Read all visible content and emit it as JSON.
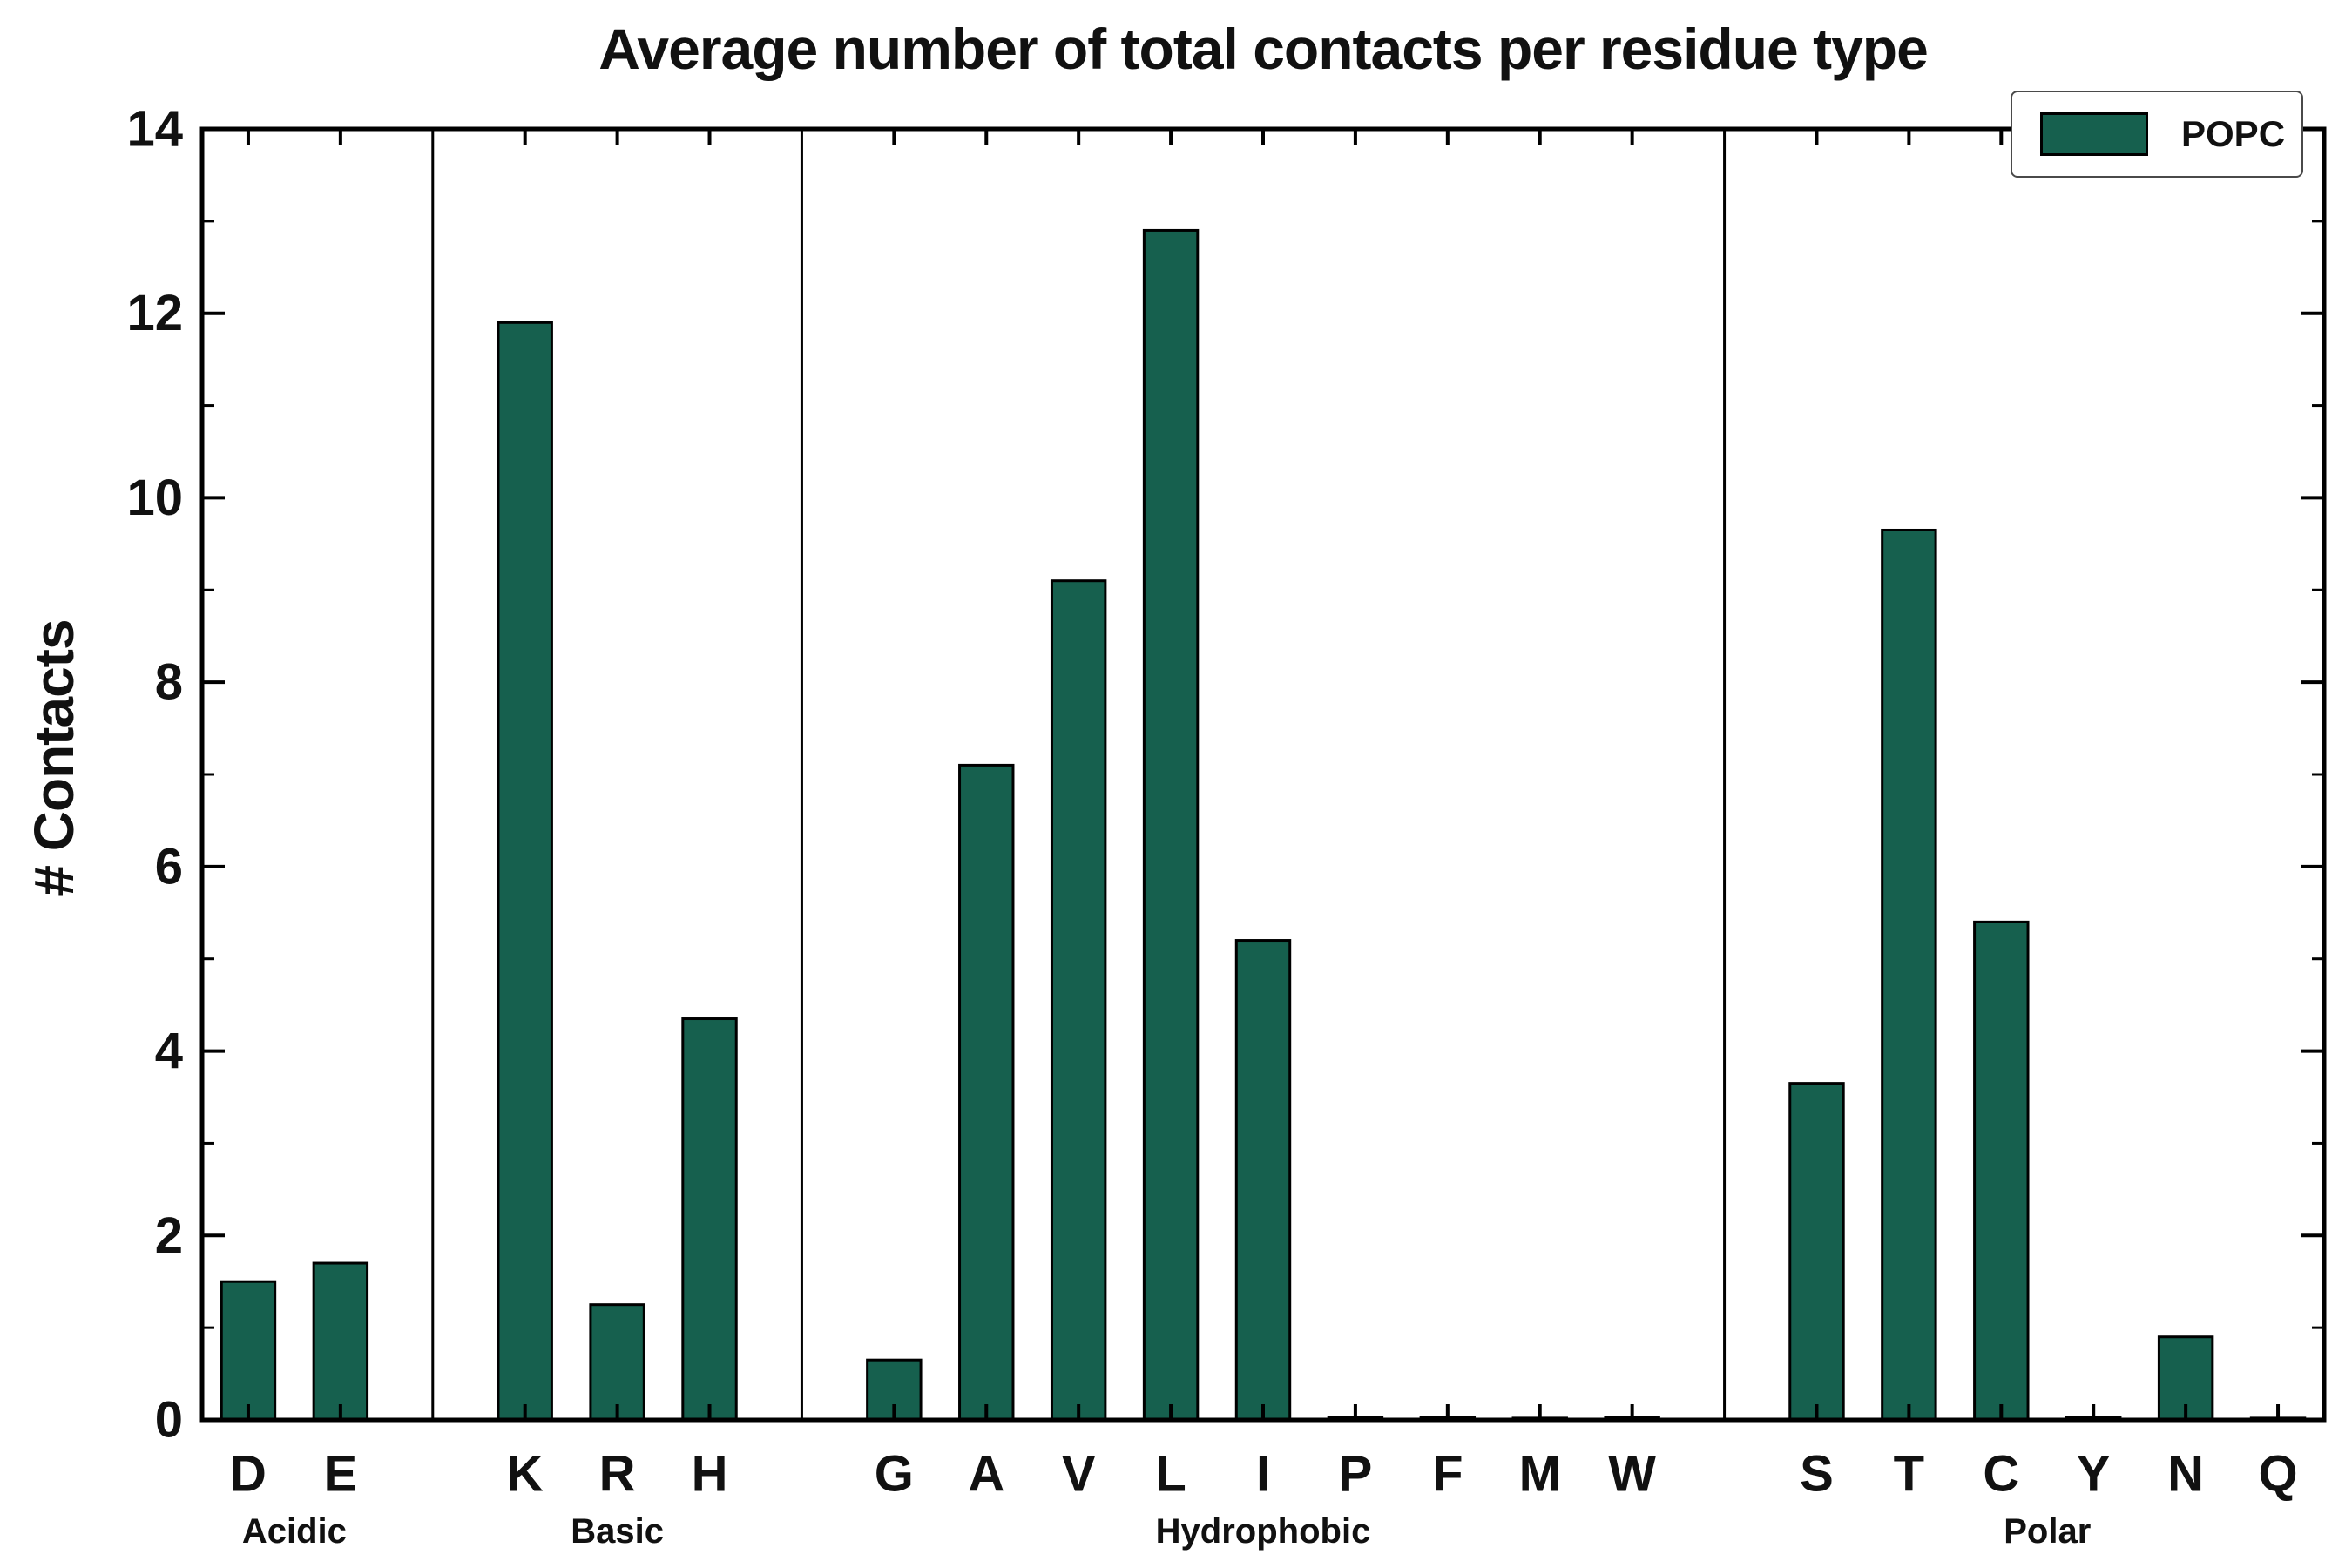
{
  "chart_data": {
    "type": "bar",
    "title": "Average number of total contacts per residue type",
    "ylabel": "# Contacts",
    "ylim": [
      0,
      14
    ],
    "yticks": [
      0,
      2,
      4,
      6,
      8,
      10,
      12,
      14
    ],
    "bar_color": "#16604E",
    "bar_edge_color": "#000000",
    "legend": {
      "label": "POPC",
      "position": "upper right"
    },
    "grid": false,
    "groups": [
      {
        "label": "Acidic",
        "categories": [
          "D",
          "E"
        ],
        "values": [
          1.5,
          1.7
        ]
      },
      {
        "label": "Basic",
        "categories": [
          "K",
          "R",
          "H"
        ],
        "values": [
          11.9,
          1.25,
          4.35
        ]
      },
      {
        "label": "Hydrophobic",
        "categories": [
          "G",
          "A",
          "V",
          "L",
          "I",
          "P",
          "F",
          "M",
          "W"
        ],
        "values": [
          0.65,
          7.1,
          9.1,
          12.9,
          5.2,
          0.03,
          0.03,
          0.02,
          0.03
        ]
      },
      {
        "label": "Polar",
        "categories": [
          "S",
          "T",
          "C",
          "Y",
          "N",
          "Q"
        ],
        "values": [
          3.65,
          9.65,
          5.4,
          0.03,
          0.9,
          0.02
        ]
      }
    ]
  }
}
